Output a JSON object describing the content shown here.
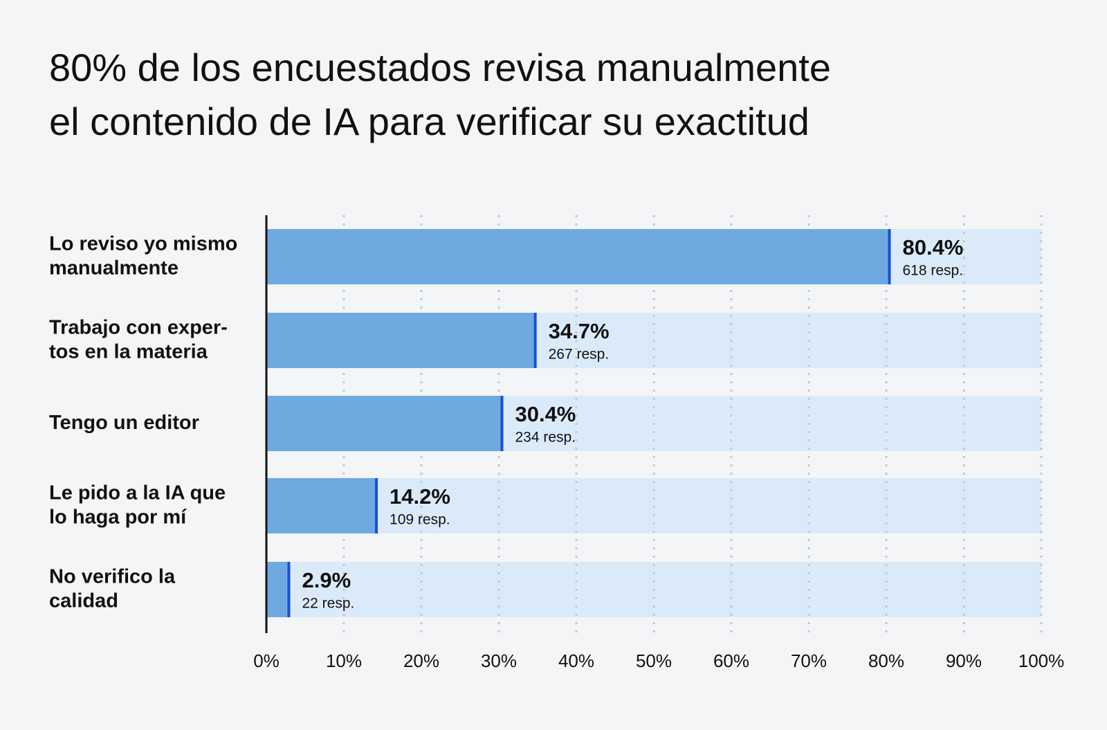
{
  "chart_data": {
    "type": "bar",
    "orientation": "horizontal",
    "title": "80% de los encuestados revisa manualmente\nel contenido de IA para verificar su exactitud",
    "categories": [
      "Lo reviso yo mismo\nmanualmente",
      "Trabajo con exper-\ntos en la materia",
      "Tengo un editor",
      "Le pido a la IA que\nlo haga por mí",
      "No verifico la\ncalidad"
    ],
    "values": [
      80.4,
      34.7,
      30.4,
      14.2,
      2.9
    ],
    "value_labels": [
      "80.4%",
      "34.7%",
      "30.4%",
      "14.2%",
      "2.9%"
    ],
    "count_labels": [
      "618 resp.",
      "267 resp.",
      "234 resp.",
      "109 resp.",
      "22 resp."
    ],
    "color": "#6eaae0",
    "track_color": "#dbeaf9",
    "end_color": "#1a4fd6",
    "xlim": [
      0,
      100
    ],
    "xticks": [
      {
        "value": 0,
        "label": "0%"
      },
      {
        "value": 10,
        "label": "10%"
      },
      {
        "value": 20,
        "label": "20%"
      },
      {
        "value": 30,
        "label": "30%"
      },
      {
        "value": 40,
        "label": "40%"
      },
      {
        "value": 50,
        "label": "50%"
      },
      {
        "value": 60,
        "label": "60%"
      },
      {
        "value": 70,
        "label": "70%"
      },
      {
        "value": 80,
        "label": "80%"
      },
      {
        "value": 90,
        "label": "90%"
      },
      {
        "value": 100,
        "label": "100%"
      }
    ],
    "grid": true
  }
}
